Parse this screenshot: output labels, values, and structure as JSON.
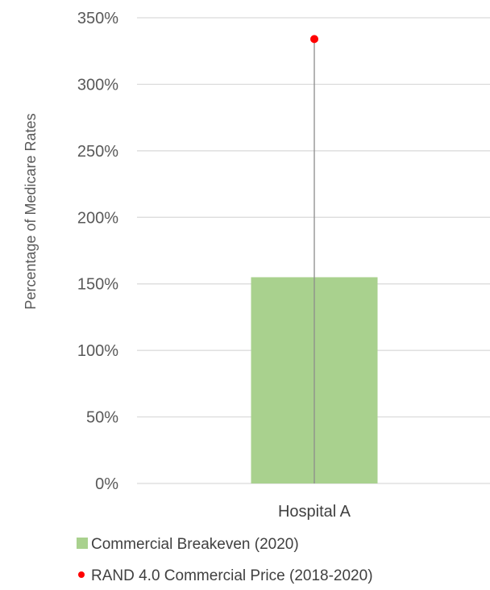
{
  "chart_data": {
    "type": "bar",
    "title": "",
    "xlabel": "",
    "ylabel": "Percentage of Medicare Rates",
    "categories": [
      "Hospital A"
    ],
    "series": [
      {
        "name": "Commercial Breakeven (2020)",
        "kind": "bar",
        "color": "#a9d18e",
        "values": [
          155
        ]
      },
      {
        "name": "RAND 4.0 Commercial Price (2018-2020)",
        "kind": "point",
        "color": "#ff0000",
        "values": [
          334
        ]
      }
    ],
    "ylim": [
      0,
      350
    ],
    "yticks": [
      0,
      50,
      100,
      150,
      200,
      250,
      300,
      350
    ],
    "ytick_format": "percent",
    "grid": true,
    "legend": "bottom-left",
    "colors": {
      "grid": "#d9d9d9",
      "text": "#595959",
      "stem": "#8c8c8c"
    }
  }
}
